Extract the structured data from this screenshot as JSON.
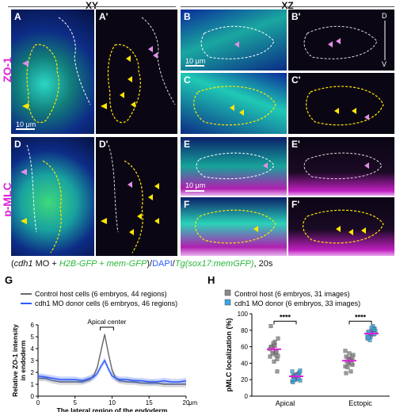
{
  "columns": {
    "xy": "XY",
    "xz": "XZ"
  },
  "rows": {
    "zo1": "ZO-1",
    "pmlc": "p-MLC"
  },
  "panels": {
    "A": "A",
    "Ap": "A'",
    "B": "B",
    "Bp": "B'",
    "C": "C",
    "Cp": "C'",
    "D": "D",
    "Dp": "D'",
    "E": "E",
    "Ep": "E'",
    "F": "F",
    "Fp": "F'",
    "G": "G",
    "H": "H"
  },
  "scalebars": {
    "a": "10 μm",
    "b": "10 μm",
    "e": "10 μm"
  },
  "axis_marks": {
    "d": "D",
    "v": "V"
  },
  "caption": {
    "p1": "(",
    "cdh1": "cdh1",
    "mo": " MO + ",
    "h2b": "H2B-GFP + mem-GFP",
    "close": ")/",
    "dapi": "DAPI",
    "slash": "/",
    "tg": "Tg(sox17:memGFP)",
    "time": ", 20s"
  },
  "colors": {
    "magenta": "#e01fd9",
    "green": "#27b83a",
    "blue": "#2d5bff",
    "yellow": "#ffe600",
    "host": "#8a8a8a",
    "donor": "#3aa7e0"
  },
  "chart_data": [
    {
      "type": "line",
      "panel": "G",
      "xlabel": "The lateral region of the endoderm",
      "ylabel": "Relative ZO-1 intensity in endoderm",
      "xlim": [
        0,
        20
      ],
      "ylim": [
        0,
        6
      ],
      "xunit": "μm",
      "xticks": [
        0,
        5,
        10,
        15,
        20
      ],
      "yticks": [
        0,
        1,
        2,
        3,
        4,
        5,
        6
      ],
      "annotation": "Apical center",
      "legend_position": "top",
      "series": [
        {
          "name": "Control host cells (6 embryos, 44 regions)",
          "color": "#6b6b6b",
          "x": [
            0,
            1,
            2,
            3,
            4,
            5,
            6,
            7,
            7.5,
            8,
            8.5,
            9,
            9.5,
            10,
            10.5,
            11,
            12,
            13,
            14,
            15,
            16,
            17,
            18,
            19,
            20
          ],
          "y": [
            1.5,
            1.5,
            1.3,
            1.2,
            1.2,
            1.2,
            1.2,
            1.4,
            1.7,
            2.4,
            3.8,
            5.2,
            3.6,
            2.2,
            1.5,
            1.3,
            1.2,
            1.2,
            1.1,
            1.1,
            1.1,
            1.0,
            1.0,
            1.0,
            1.0
          ]
        },
        {
          "name": "cdh1 MO donor cells (6 embryos, 46 regions)",
          "color": "#2d5bff",
          "x": [
            0,
            1,
            2,
            3,
            4,
            5,
            6,
            7,
            7.5,
            8,
            8.5,
            9,
            9.5,
            10,
            10.5,
            11,
            12,
            13,
            14,
            15,
            16,
            17,
            18,
            19,
            20
          ],
          "y": [
            1.7,
            1.6,
            1.5,
            1.4,
            1.4,
            1.4,
            1.3,
            1.5,
            1.6,
            1.9,
            2.5,
            3.0,
            2.3,
            1.7,
            1.5,
            1.4,
            1.4,
            1.3,
            1.3,
            1.2,
            1.2,
            1.3,
            1.2,
            1.2,
            1.3
          ]
        }
      ]
    },
    {
      "type": "scatter",
      "panel": "H",
      "ylabel": "pMLC localization (%)",
      "categories": [
        "Apical",
        "Ectopic"
      ],
      "ylim": [
        0,
        100
      ],
      "yticks": [
        0,
        20,
        40,
        60,
        80,
        100
      ],
      "significance": [
        "****",
        "****"
      ],
      "legend_position": "top",
      "series": [
        {
          "name": "Control host (6 embryos, 31 images)",
          "color": "#8a8a8a",
          "mean": [
            57,
            43
          ],
          "points": [
            [
              48,
              52,
              55,
              60,
              62,
              45,
              58,
              66,
              70,
              52,
              50,
              57,
              64,
              54,
              85,
              42,
              30,
              59,
              61,
              49
            ],
            [
              36,
              40,
              44,
              48,
              52,
              38,
              42,
              45,
              50,
              35,
              30,
              55,
              46,
              40,
              28,
              44,
              47
            ]
          ]
        },
        {
          "name": "cdh1 MO donor (6 embryos, 33 images)",
          "color": "#3aa7e0",
          "mean": [
            24,
            76
          ],
          "points": [
            [
              18,
              20,
              22,
              24,
              26,
              28,
              25,
              21,
              19,
              23,
              27,
              30,
              24,
              22,
              17,
              26,
              29,
              20,
              25,
              31
            ],
            [
              70,
              72,
              75,
              78,
              80,
              82,
              74,
              76,
              79,
              68,
              85,
              73,
              77,
              81,
              71,
              83,
              76,
              78
            ]
          ]
        }
      ]
    }
  ]
}
